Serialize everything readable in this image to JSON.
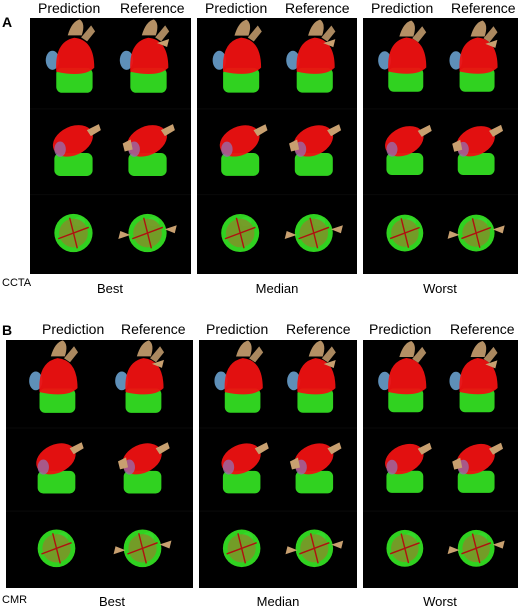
{
  "panels": [
    {
      "letter": "A",
      "modality": "CCTA",
      "groups": [
        {
          "quality": "Best",
          "col_left": "Prediction",
          "col_right": "Reference"
        },
        {
          "quality": "Median",
          "col_left": "Prediction",
          "col_right": "Reference"
        },
        {
          "quality": "Worst",
          "col_left": "Prediction",
          "col_right": "Reference"
        }
      ]
    },
    {
      "letter": "B",
      "modality": "CMR",
      "groups": [
        {
          "quality": "Best",
          "col_left": "Prediction",
          "col_right": "Reference"
        },
        {
          "quality": "Median",
          "col_left": "Prediction",
          "col_right": "Reference"
        },
        {
          "quality": "Worst",
          "col_left": "Prediction",
          "col_right": "Reference"
        }
      ]
    }
  ],
  "colors": {
    "background": "#000000",
    "ventricle": "#33dd22",
    "atrium": "#ee1111",
    "vessels": "#c8a070",
    "veins": "#6fa8d8",
    "axis_lines": "#b01010"
  }
}
